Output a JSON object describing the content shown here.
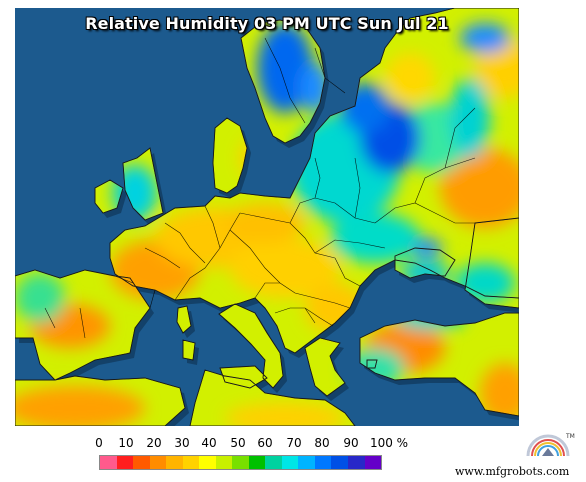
{
  "title": "Relative Humidity 03 PM UTC Sun Jul 21",
  "legend": {
    "labels": [
      "0",
      "10",
      "20",
      "30",
      "40",
      "50",
      "60",
      "70",
      "80",
      "90",
      "100 %"
    ],
    "colors": [
      "#ff5a8c",
      "#ff1e1e",
      "#ff5a00",
      "#ff8c00",
      "#ffb400",
      "#ffd200",
      "#ffff00",
      "#c8f000",
      "#78e000",
      "#00c000",
      "#00d2a0",
      "#00e6e6",
      "#00b4ff",
      "#0078ff",
      "#0050e6",
      "#2828c8",
      "#6400c8"
    ]
  },
  "logo": {
    "mark": "TM"
  },
  "credit": "www.mfgrobots.com",
  "colors": {
    "ocean": "#1c5a8e",
    "land_dry": "#ffc800",
    "land_mid": "#d8f000",
    "land_humid": "#00d8d0",
    "land_wet": "#0060f0",
    "border": "#000000"
  }
}
